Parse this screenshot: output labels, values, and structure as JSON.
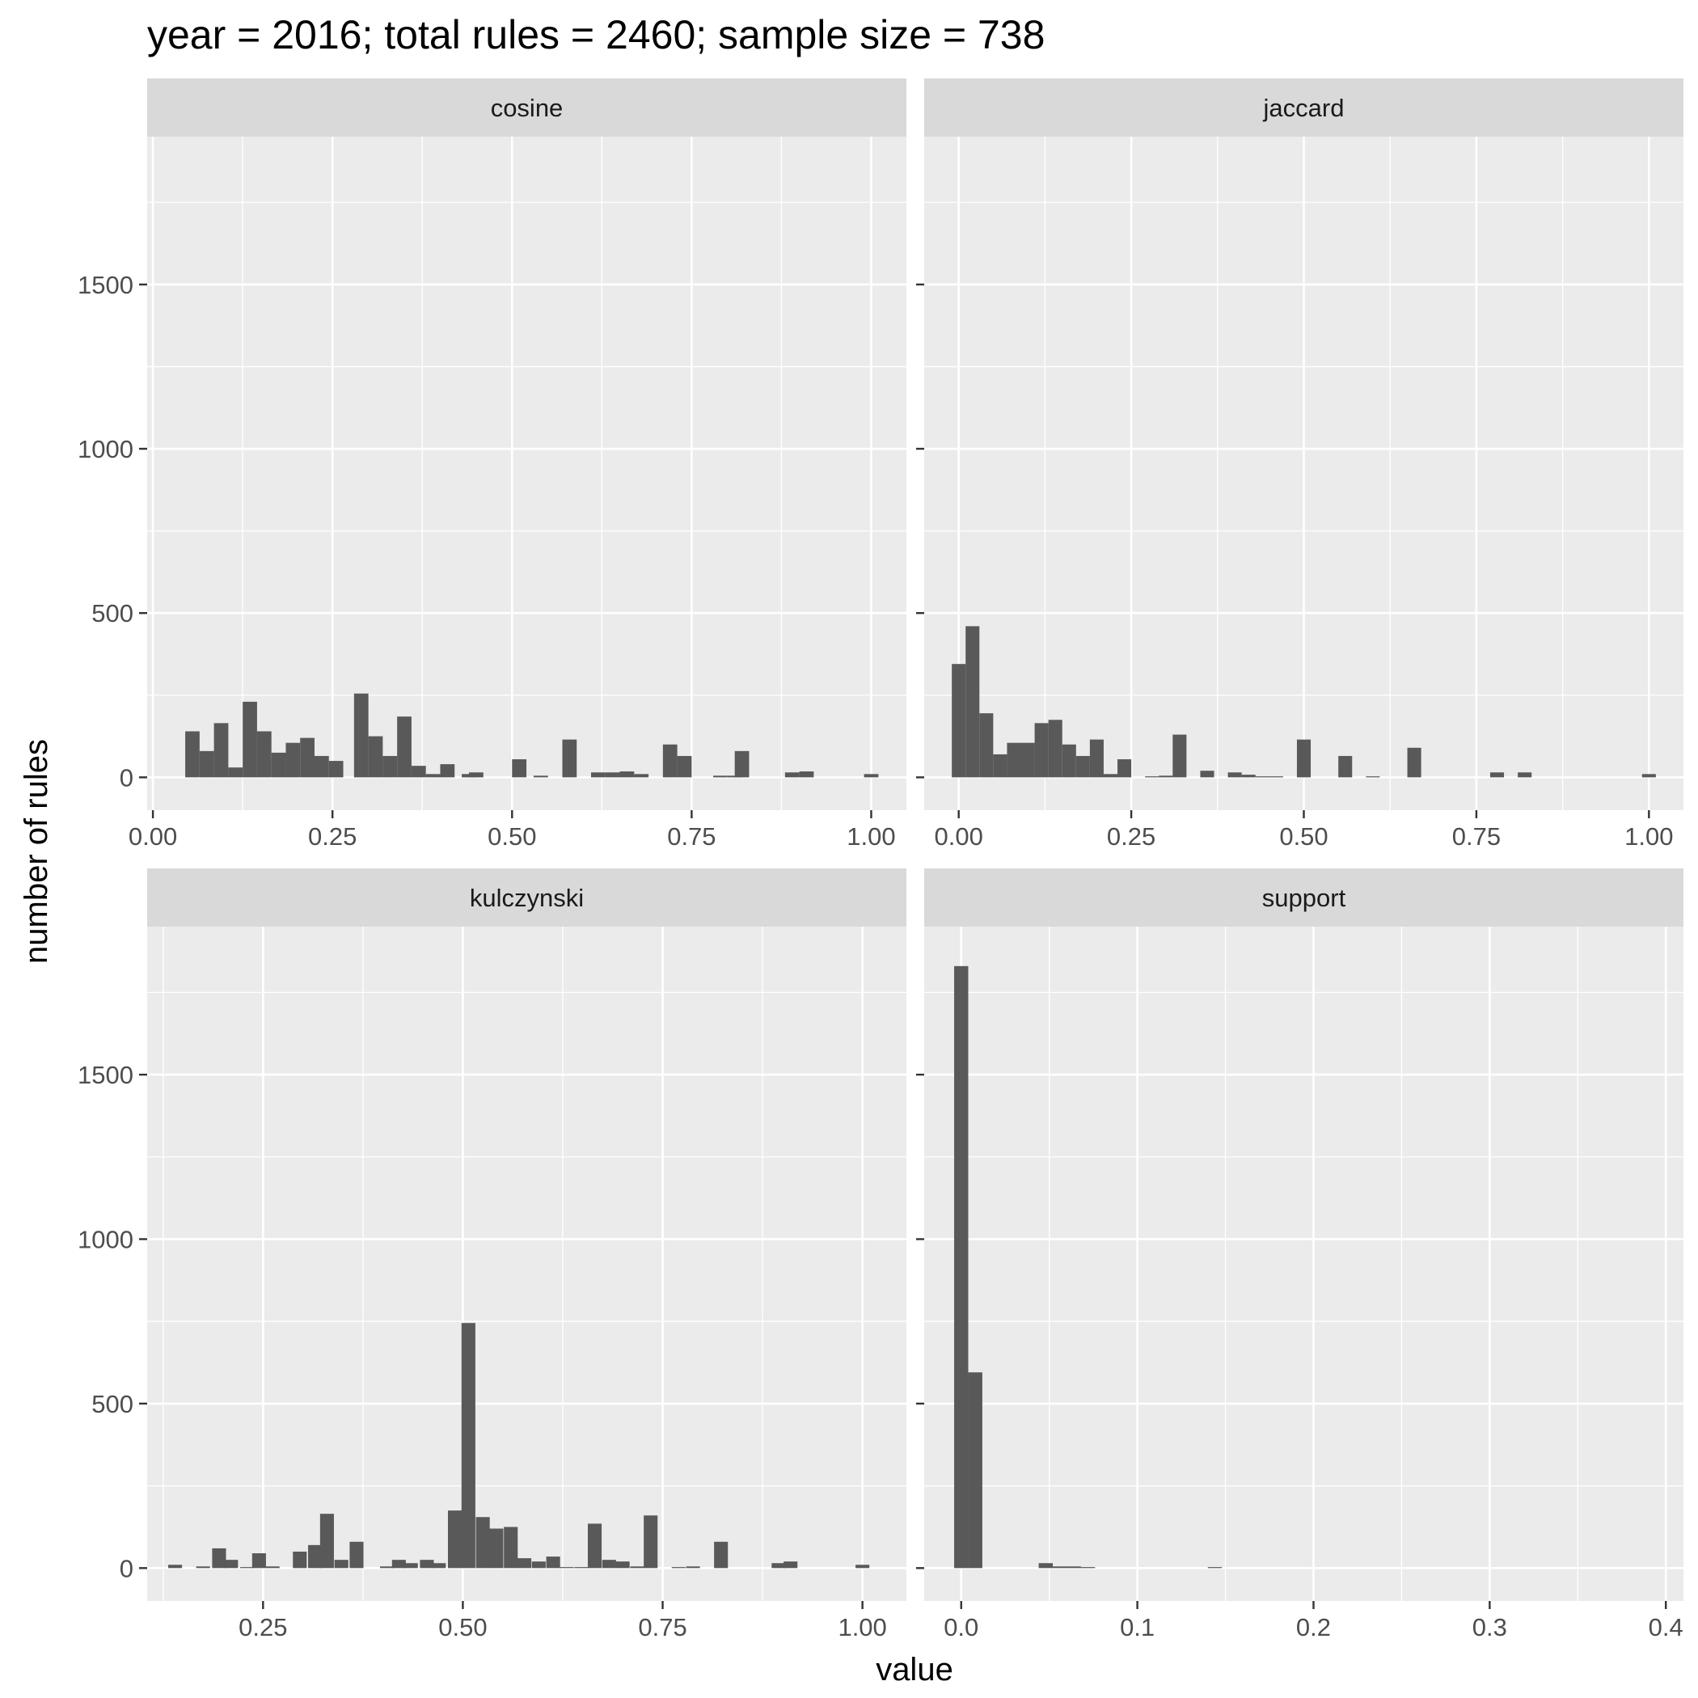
{
  "chart_data": {
    "type": "bar",
    "title": "year = 2016; total rules = 2460; sample size = 738",
    "xlabel": "value",
    "ylabel": "number of rules",
    "ylim": [
      -100,
      1950
    ],
    "y_breaks": [
      0,
      500,
      1000,
      1500
    ],
    "grid": true,
    "panels": [
      {
        "name": "cosine",
        "xlim": [
          -0.008,
          1.049
        ],
        "x_breaks": [
          0,
          0.25,
          0.5,
          0.75,
          1
        ],
        "x_labels": [
          "0.00",
          "0.25",
          "0.50",
          "0.75",
          "1.00"
        ],
        "y_labels_shown": true,
        "x_labels_shown": true,
        "bin_width": 0.02,
        "bins": [
          [
            0.055,
            140
          ],
          [
            0.075,
            80
          ],
          [
            0.095,
            165
          ],
          [
            0.115,
            30
          ],
          [
            0.135,
            230
          ],
          [
            0.155,
            140
          ],
          [
            0.175,
            75
          ],
          [
            0.195,
            105
          ],
          [
            0.215,
            120
          ],
          [
            0.235,
            65
          ],
          [
            0.255,
            50
          ],
          [
            0.29,
            255
          ],
          [
            0.31,
            125
          ],
          [
            0.33,
            65
          ],
          [
            0.35,
            185
          ],
          [
            0.37,
            35
          ],
          [
            0.39,
            10
          ],
          [
            0.41,
            40
          ],
          [
            0.44,
            10
          ],
          [
            0.45,
            15
          ],
          [
            0.51,
            55
          ],
          [
            0.54,
            5
          ],
          [
            0.58,
            115
          ],
          [
            0.62,
            15
          ],
          [
            0.64,
            15
          ],
          [
            0.66,
            18
          ],
          [
            0.68,
            10
          ],
          [
            0.72,
            100
          ],
          [
            0.74,
            65
          ],
          [
            0.79,
            5
          ],
          [
            0.81,
            5
          ],
          [
            0.82,
            80
          ],
          [
            0.89,
            15
          ],
          [
            0.91,
            18
          ],
          [
            1.0,
            10
          ]
        ]
      },
      {
        "name": "jaccard",
        "xlim": [
          -0.05,
          1.05
        ],
        "x_breaks": [
          0,
          0.25,
          0.5,
          0.75,
          1
        ],
        "x_labels": [
          "0.00",
          "0.25",
          "0.50",
          "0.75",
          "1.00"
        ],
        "y_labels_shown": false,
        "x_labels_shown": true,
        "bin_width": 0.02,
        "bins": [
          [
            0.0,
            345
          ],
          [
            0.02,
            460
          ],
          [
            0.04,
            195
          ],
          [
            0.06,
            70
          ],
          [
            0.08,
            105
          ],
          [
            0.1,
            105
          ],
          [
            0.12,
            165
          ],
          [
            0.14,
            175
          ],
          [
            0.16,
            100
          ],
          [
            0.18,
            65
          ],
          [
            0.2,
            115
          ],
          [
            0.22,
            10
          ],
          [
            0.24,
            55
          ],
          [
            0.28,
            3
          ],
          [
            0.3,
            5
          ],
          [
            0.32,
            130
          ],
          [
            0.36,
            20
          ],
          [
            0.4,
            15
          ],
          [
            0.42,
            8
          ],
          [
            0.44,
            3
          ],
          [
            0.46,
            3
          ],
          [
            0.5,
            115
          ],
          [
            0.56,
            65
          ],
          [
            0.6,
            3
          ],
          [
            0.66,
            90
          ],
          [
            0.78,
            15
          ],
          [
            0.82,
            15
          ],
          [
            1.0,
            10
          ]
        ]
      },
      {
        "name": "kulczynski",
        "xlim": [
          0.105,
          1.055
        ],
        "x_breaks": [
          0.25,
          0.5,
          0.75,
          1
        ],
        "x_labels": [
          "0.25",
          "0.50",
          "0.75",
          "1.00"
        ],
        "y_labels_shown": true,
        "x_labels_shown": true,
        "bin_width": 0.0173,
        "bins": [
          [
            0.14,
            10
          ],
          [
            0.175,
            5
          ],
          [
            0.195,
            60
          ],
          [
            0.21,
            25
          ],
          [
            0.23,
            3
          ],
          [
            0.245,
            45
          ],
          [
            0.262,
            5
          ],
          [
            0.296,
            50
          ],
          [
            0.315,
            70
          ],
          [
            0.33,
            165
          ],
          [
            0.348,
            25
          ],
          [
            0.367,
            80
          ],
          [
            0.405,
            5
          ],
          [
            0.42,
            25
          ],
          [
            0.435,
            15
          ],
          [
            0.455,
            25
          ],
          [
            0.47,
            15
          ],
          [
            0.49,
            175
          ],
          [
            0.507,
            745
          ],
          [
            0.525,
            155
          ],
          [
            0.542,
            120
          ],
          [
            0.56,
            125
          ],
          [
            0.577,
            30
          ],
          [
            0.595,
            20
          ],
          [
            0.613,
            35
          ],
          [
            0.63,
            3
          ],
          [
            0.648,
            3
          ],
          [
            0.665,
            135
          ],
          [
            0.683,
            25
          ],
          [
            0.7,
            20
          ],
          [
            0.718,
            5
          ],
          [
            0.735,
            160
          ],
          [
            0.77,
            3
          ],
          [
            0.788,
            5
          ],
          [
            0.823,
            80
          ],
          [
            0.895,
            15
          ],
          [
            0.91,
            20
          ],
          [
            1.0,
            10
          ]
        ]
      },
      {
        "name": "support",
        "xlim": [
          -0.021,
          0.41
        ],
        "x_breaks": [
          0,
          0.1,
          0.2,
          0.3,
          0.4
        ],
        "x_labels": [
          "0.0",
          "0.1",
          "0.2",
          "0.3",
          "0.4"
        ],
        "y_labels_shown": false,
        "x_labels_shown": true,
        "bin_width": 0.008,
        "bins": [
          [
            0.0,
            1830
          ],
          [
            0.008,
            595
          ],
          [
            0.048,
            15
          ],
          [
            0.056,
            5
          ],
          [
            0.064,
            5
          ],
          [
            0.072,
            3
          ],
          [
            0.144,
            3
          ]
        ]
      }
    ]
  }
}
